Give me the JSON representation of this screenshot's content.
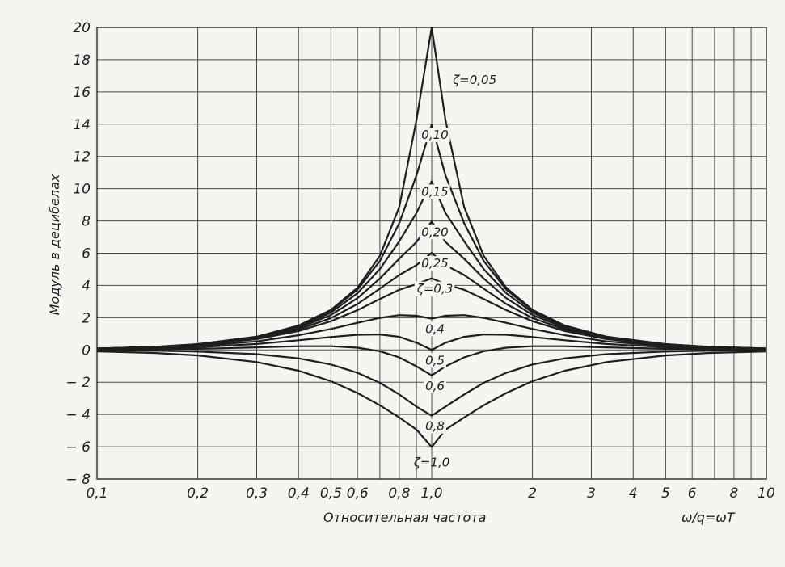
{
  "chart_data": {
    "type": "line",
    "xscale": "log",
    "xlim": [
      0.1,
      10
    ],
    "ylim": [
      -8,
      20
    ],
    "grid": true,
    "ylabel": "Модуль в децибелах",
    "xlabel": "Относительная частота",
    "xlabel_right": "ω/q=ωT",
    "yticks": [
      20,
      18,
      16,
      14,
      12,
      10,
      8,
      6,
      4,
      2,
      0,
      -2,
      -4,
      -6,
      -8
    ],
    "ytick_labels": [
      "20",
      "18",
      "16",
      "14",
      "12",
      "10",
      "8",
      "6",
      "4",
      "2",
      "0",
      "− 2",
      "− 4",
      "− 6",
      "− 8"
    ],
    "xticks": [
      0.1,
      0.2,
      0.3,
      0.4,
      0.5,
      0.6,
      0.8,
      1.0,
      2,
      3,
      4,
      5,
      6,
      8,
      10
    ],
    "xtick_labels": [
      "0,1",
      "0,2",
      "0,3",
      "0,4",
      "0,5",
      "0,6",
      "0,8",
      "1,0",
      "2",
      "3",
      "4",
      "5",
      "6",
      "8",
      "10"
    ],
    "x": [
      0.1,
      0.15,
      0.2,
      0.3,
      0.4,
      0.5,
      0.6,
      0.7,
      0.8,
      0.9,
      1.0,
      1.1,
      1.25,
      1.43,
      1.67,
      2,
      2.5,
      3.33,
      5,
      6.67,
      10
    ],
    "series": [
      {
        "name": "ζ=0,05",
        "values": [
          0.09,
          0.2,
          0.36,
          0.82,
          1.51,
          2.49,
          3.86,
          5.84,
          8.87,
          14.24,
          20.0,
          14.24,
          8.87,
          5.84,
          3.86,
          2.49,
          1.51,
          0.82,
          0.36,
          0.2,
          0.09
        ]
      },
      {
        "name": "0,10",
        "values": [
          0.09,
          0.2,
          0.36,
          0.81,
          1.48,
          2.44,
          3.74,
          5.52,
          7.87,
          10.82,
          13.98,
          10.82,
          7.87,
          5.52,
          3.74,
          2.44,
          1.48,
          0.81,
          0.36,
          0.2,
          0.09
        ]
      },
      {
        "name": "0,15",
        "values": [
          0.09,
          0.19,
          0.35,
          0.79,
          1.43,
          2.32,
          3.52,
          5.02,
          6.74,
          8.49,
          10.46,
          8.49,
          6.74,
          5.02,
          3.52,
          2.32,
          1.43,
          0.79,
          0.35,
          0.19,
          0.09
        ]
      },
      {
        "name": "0,20",
        "values": [
          0.08,
          0.19,
          0.34,
          0.76,
          1.36,
          2.17,
          3.21,
          4.43,
          5.66,
          6.69,
          7.96,
          6.69,
          5.66,
          4.43,
          3.21,
          2.17,
          1.36,
          0.76,
          0.34,
          0.19,
          0.08
        ]
      },
      {
        "name": "0,25",
        "values": [
          0.08,
          0.18,
          0.32,
          0.72,
          1.27,
          1.98,
          2.85,
          3.8,
          4.65,
          5.26,
          6.02,
          5.26,
          4.65,
          3.8,
          2.85,
          1.98,
          1.27,
          0.72,
          0.32,
          0.18,
          0.08
        ]
      },
      {
        "name": "ζ=0,3",
        "values": [
          0.07,
          0.17,
          0.3,
          0.67,
          1.17,
          1.78,
          2.47,
          3.16,
          3.73,
          4.08,
          4.44,
          4.08,
          3.73,
          3.16,
          2.47,
          1.78,
          1.17,
          0.67,
          0.3,
          0.17,
          0.07
        ]
      },
      {
        "name": "0,4",
        "values": [
          0.06,
          0.14,
          0.24,
          0.53,
          0.91,
          1.3,
          1.68,
          1.99,
          2.16,
          2.12,
          1.94,
          2.12,
          2.16,
          1.99,
          1.68,
          1.3,
          0.91,
          0.53,
          0.24,
          0.14,
          0.06
        ]
      },
      {
        "name": "0,5",
        "values": [
          0.04,
          0.09,
          0.17,
          0.37,
          0.6,
          0.8,
          0.94,
          0.96,
          0.81,
          0.45,
          0.0,
          0.45,
          0.81,
          0.96,
          0.94,
          0.8,
          0.6,
          0.37,
          0.17,
          0.09,
          0.04
        ]
      },
      {
        "name": "0,6",
        "values": [
          0.02,
          0.04,
          0.07,
          0.16,
          0.23,
          0.23,
          0.14,
          -0.08,
          -0.46,
          -1.02,
          -1.58,
          -1.02,
          -0.46,
          -0.08,
          0.14,
          0.23,
          0.23,
          0.16,
          0.07,
          0.04,
          0.02
        ]
      },
      {
        "name": "0,8",
        "values": [
          -0.02,
          -0.05,
          -0.1,
          -0.26,
          -0.52,
          -0.9,
          -1.42,
          -2.04,
          -2.76,
          -3.51,
          -4.08,
          -3.51,
          -2.76,
          -2.04,
          -1.42,
          -0.9,
          -0.52,
          -0.26,
          -0.1,
          -0.05,
          -0.02
        ]
      },
      {
        "name": "ζ=1,0",
        "values": [
          -0.09,
          -0.19,
          -0.34,
          -0.75,
          -1.29,
          -1.94,
          -2.67,
          -3.43,
          -4.19,
          -4.94,
          -6.02,
          -4.94,
          -4.19,
          -3.43,
          -2.67,
          -1.94,
          -1.29,
          -0.75,
          -0.34,
          -0.19,
          -0.09
        ]
      }
    ]
  }
}
